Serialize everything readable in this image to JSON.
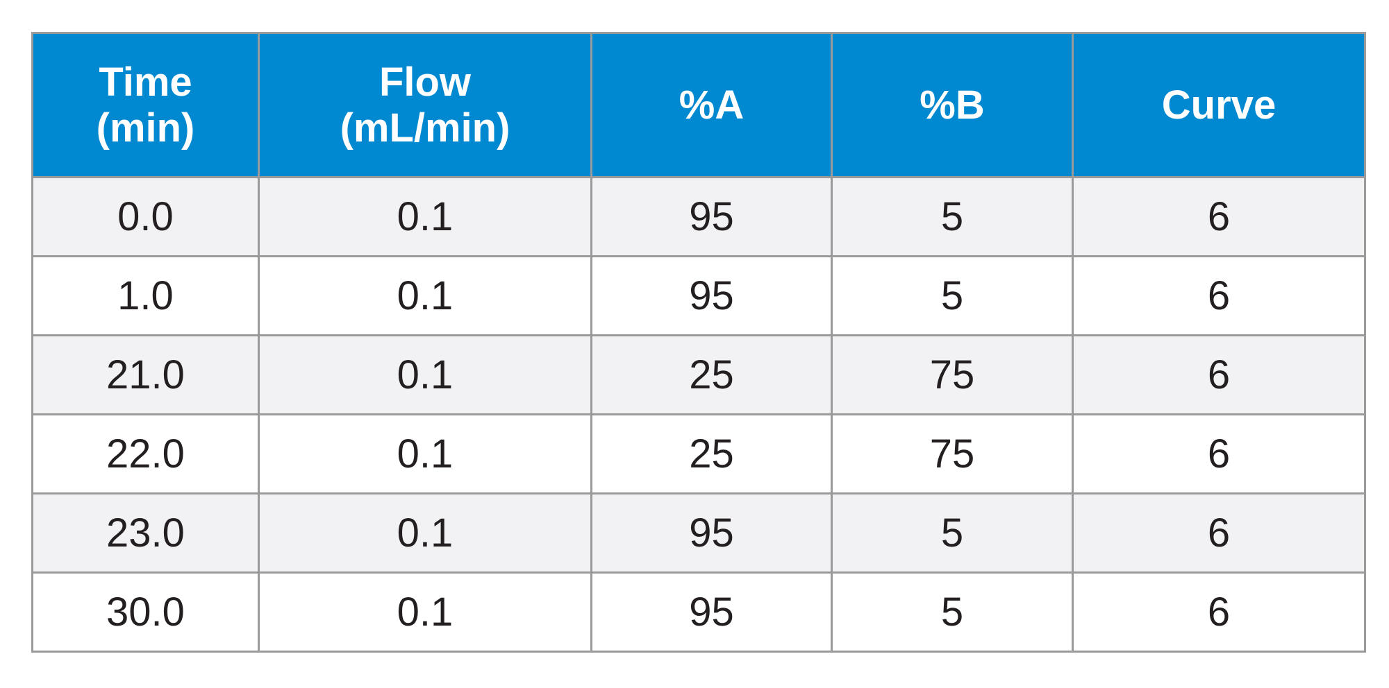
{
  "table": {
    "header": [
      "Time\n(min)",
      "Flow\n(mL/min)",
      "%A",
      "%B",
      "Curve"
    ],
    "rows": [
      [
        "0.0",
        "0.1",
        "95",
        "5",
        "6"
      ],
      [
        "1.0",
        "0.1",
        "95",
        "5",
        "6"
      ],
      [
        "21.0",
        "0.1",
        "25",
        "75",
        "6"
      ],
      [
        "22.0",
        "0.1",
        "25",
        "75",
        "6"
      ],
      [
        "23.0",
        "0.1",
        "95",
        "5",
        "6"
      ],
      [
        "30.0",
        "0.1",
        "95",
        "5",
        "6"
      ]
    ]
  }
}
